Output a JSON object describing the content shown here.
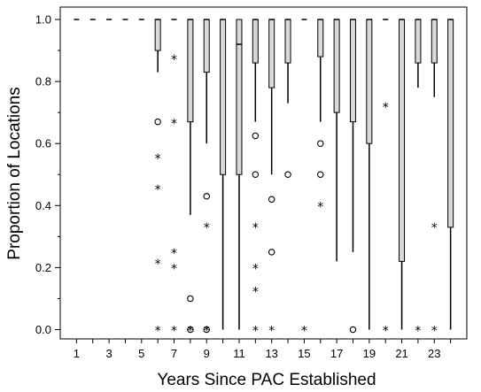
{
  "chart_data": {
    "type": "boxplot",
    "xlabel": "Years Since PAC Established",
    "ylabel": "Proportion of Locations",
    "xlim": [
      0,
      25
    ],
    "ylim": [
      -0.03,
      1.04
    ],
    "x_ticks": [
      1,
      2,
      3,
      4,
      5,
      6,
      7,
      8,
      9,
      10,
      11,
      12,
      13,
      14,
      15,
      16,
      17,
      18,
      19,
      20,
      21,
      22,
      23,
      24
    ],
    "x_tick_labels": [
      {
        "x": 1,
        "label": "1"
      },
      {
        "x": 3,
        "label": "3"
      },
      {
        "x": 5,
        "label": "5"
      },
      {
        "x": 7,
        "label": "7"
      },
      {
        "x": 9,
        "label": "9"
      },
      {
        "x": 11,
        "label": "11"
      },
      {
        "x": 13,
        "label": "13"
      },
      {
        "x": 15,
        "label": "15"
      },
      {
        "x": 17,
        "label": "17"
      },
      {
        "x": 19,
        "label": "19"
      },
      {
        "x": 21,
        "label": "21"
      },
      {
        "x": 23,
        "label": "23"
      }
    ],
    "y_ticks": [
      {
        "v": 0.0,
        "label": "0.0"
      },
      {
        "v": 0.2,
        "label": "0.2"
      },
      {
        "v": 0.4,
        "label": "0.4"
      },
      {
        "v": 0.6,
        "label": "0.6"
      },
      {
        "v": 0.8,
        "label": "0.8"
      },
      {
        "v": 1.0,
        "label": "1.0"
      }
    ],
    "y_minor_ticks": [
      0.1,
      0.3,
      0.5,
      0.7,
      0.9
    ],
    "boxes": [
      {
        "x": 1,
        "q1": 1.0,
        "median": 1.0,
        "q3": 1.0,
        "whisker_low": 1.0,
        "whisker_high": 1.0
      },
      {
        "x": 2,
        "q1": 1.0,
        "median": 1.0,
        "q3": 1.0,
        "whisker_low": 1.0,
        "whisker_high": 1.0
      },
      {
        "x": 3,
        "q1": 1.0,
        "median": 1.0,
        "q3": 1.0,
        "whisker_low": 1.0,
        "whisker_high": 1.0
      },
      {
        "x": 4,
        "q1": 1.0,
        "median": 1.0,
        "q3": 1.0,
        "whisker_low": 1.0,
        "whisker_high": 1.0
      },
      {
        "x": 5,
        "q1": 1.0,
        "median": 1.0,
        "q3": 1.0,
        "whisker_low": 1.0,
        "whisker_high": 1.0
      },
      {
        "x": 6,
        "q1": 0.9,
        "median": 1.0,
        "q3": 1.0,
        "whisker_low": 0.83,
        "whisker_high": 1.0
      },
      {
        "x": 7,
        "q1": 1.0,
        "median": 1.0,
        "q3": 1.0,
        "whisker_low": 1.0,
        "whisker_high": 1.0
      },
      {
        "x": 8,
        "q1": 0.67,
        "median": 1.0,
        "q3": 1.0,
        "whisker_low": 0.37,
        "whisker_high": 1.0
      },
      {
        "x": 9,
        "q1": 0.83,
        "median": 1.0,
        "q3": 1.0,
        "whisker_low": 0.6,
        "whisker_high": 1.0
      },
      {
        "x": 10,
        "q1": 0.5,
        "median": 1.0,
        "q3": 1.0,
        "whisker_low": 0.0,
        "whisker_high": 1.0
      },
      {
        "x": 11,
        "q1": 0.5,
        "median": 0.92,
        "q3": 1.0,
        "whisker_low": 0.0,
        "whisker_high": 1.0
      },
      {
        "x": 12,
        "q1": 0.86,
        "median": 1.0,
        "q3": 1.0,
        "whisker_low": 0.67,
        "whisker_high": 1.0
      },
      {
        "x": 13,
        "q1": 0.78,
        "median": 1.0,
        "q3": 1.0,
        "whisker_low": 0.5,
        "whisker_high": 1.0
      },
      {
        "x": 14,
        "q1": 0.86,
        "median": 1.0,
        "q3": 1.0,
        "whisker_low": 0.73,
        "whisker_high": 1.0
      },
      {
        "x": 15,
        "q1": 1.0,
        "median": 1.0,
        "q3": 1.0,
        "whisker_low": 1.0,
        "whisker_high": 1.0
      },
      {
        "x": 16,
        "q1": 0.88,
        "median": 1.0,
        "q3": 1.0,
        "whisker_low": 0.67,
        "whisker_high": 1.0
      },
      {
        "x": 17,
        "q1": 0.7,
        "median": 1.0,
        "q3": 1.0,
        "whisker_low": 0.22,
        "whisker_high": 1.0
      },
      {
        "x": 18,
        "q1": 0.67,
        "median": 1.0,
        "q3": 1.0,
        "whisker_low": 0.25,
        "whisker_high": 1.0
      },
      {
        "x": 19,
        "q1": 0.6,
        "median": 1.0,
        "q3": 1.0,
        "whisker_low": 0.0,
        "whisker_high": 1.0
      },
      {
        "x": 20,
        "q1": 1.0,
        "median": 1.0,
        "q3": 1.0,
        "whisker_low": 1.0,
        "whisker_high": 1.0
      },
      {
        "x": 21,
        "q1": 0.22,
        "median": 1.0,
        "q3": 1.0,
        "whisker_low": 0.0,
        "whisker_high": 1.0
      },
      {
        "x": 22,
        "q1": 0.86,
        "median": 1.0,
        "q3": 1.0,
        "whisker_low": 0.78,
        "whisker_high": 1.0
      },
      {
        "x": 23,
        "q1": 0.86,
        "median": 1.0,
        "q3": 1.0,
        "whisker_low": 0.75,
        "whisker_high": 1.0
      },
      {
        "x": 24,
        "q1": 0.33,
        "median": 1.0,
        "q3": 1.0,
        "whisker_low": 0.0,
        "whisker_high": 1.0
      }
    ],
    "outliers": [
      {
        "x": 6,
        "y": 0.67,
        "kind": "circle"
      },
      {
        "x": 8,
        "y": 0.1,
        "kind": "circle"
      },
      {
        "x": 8,
        "y": 0.0,
        "kind": "circle"
      },
      {
        "x": 9,
        "y": 0.43,
        "kind": "circle"
      },
      {
        "x": 9,
        "y": 0.0,
        "kind": "circle"
      },
      {
        "x": 12,
        "y": 0.625,
        "kind": "circle"
      },
      {
        "x": 12,
        "y": 0.5,
        "kind": "circle"
      },
      {
        "x": 13,
        "y": 0.42,
        "kind": "circle"
      },
      {
        "x": 13,
        "y": 0.25,
        "kind": "circle"
      },
      {
        "x": 14,
        "y": 0.5,
        "kind": "circle"
      },
      {
        "x": 16,
        "y": 0.6,
        "kind": "circle"
      },
      {
        "x": 16,
        "y": 0.5,
        "kind": "circle"
      },
      {
        "x": 18,
        "y": 0.0,
        "kind": "circle"
      }
    ],
    "extremes": [
      {
        "x": 6,
        "y": 0.555
      },
      {
        "x": 6,
        "y": 0.455
      },
      {
        "x": 6,
        "y": 0.215
      },
      {
        "x": 6,
        "y": 0.0
      },
      {
        "x": 7,
        "y": 0.875
      },
      {
        "x": 7,
        "y": 0.667
      },
      {
        "x": 7,
        "y": 0.25
      },
      {
        "x": 7,
        "y": 0.2
      },
      {
        "x": 7,
        "y": 0.0
      },
      {
        "x": 8,
        "y": 0.0
      },
      {
        "x": 9,
        "y": 0.333
      },
      {
        "x": 9,
        "y": 0.0
      },
      {
        "x": 12,
        "y": 0.333
      },
      {
        "x": 12,
        "y": 0.2
      },
      {
        "x": 12,
        "y": 0.125
      },
      {
        "x": 12,
        "y": 0.0
      },
      {
        "x": 13,
        "y": 0.0
      },
      {
        "x": 15,
        "y": 0.0
      },
      {
        "x": 16,
        "y": 0.4
      },
      {
        "x": 20,
        "y": 0.72
      },
      {
        "x": 20,
        "y": 0.0
      },
      {
        "x": 22,
        "y": 0.0
      },
      {
        "x": 23,
        "y": 0.333
      },
      {
        "x": 23,
        "y": 0.0
      }
    ],
    "grid": false,
    "colors": {
      "box_fill": "#d9d9d9",
      "line": "#000000"
    }
  }
}
